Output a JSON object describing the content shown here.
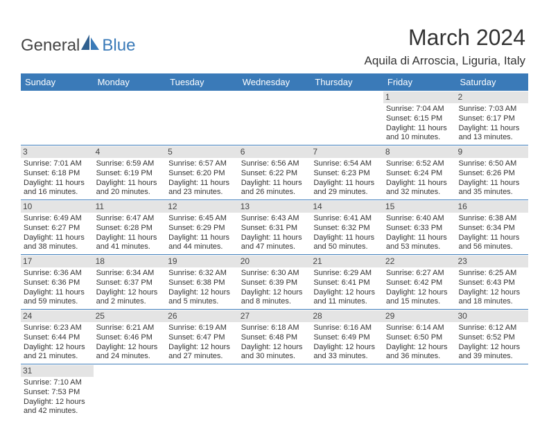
{
  "brand": {
    "part1": "General",
    "part2": "Blue"
  },
  "title": "March 2024",
  "location": "Aquila di Arroscia, Liguria, Italy",
  "colors": {
    "header_bg": "#3a7ab8",
    "header_text": "#ffffff",
    "daynum_bg": "#e4e4e4",
    "border": "#3a7ab8",
    "body_text": "#333333",
    "logo_gray": "#444444",
    "logo_blue": "#3a7ab8"
  },
  "daynames": [
    "Sunday",
    "Monday",
    "Tuesday",
    "Wednesday",
    "Thursday",
    "Friday",
    "Saturday"
  ],
  "weeks": [
    [
      {
        "blank": true
      },
      {
        "blank": true
      },
      {
        "blank": true
      },
      {
        "blank": true
      },
      {
        "blank": true
      },
      {
        "day": "1",
        "sunrise": "Sunrise: 7:04 AM",
        "sunset": "Sunset: 6:15 PM",
        "daylight1": "Daylight: 11 hours",
        "daylight2": "and 10 minutes."
      },
      {
        "day": "2",
        "sunrise": "Sunrise: 7:03 AM",
        "sunset": "Sunset: 6:17 PM",
        "daylight1": "Daylight: 11 hours",
        "daylight2": "and 13 minutes."
      }
    ],
    [
      {
        "day": "3",
        "sunrise": "Sunrise: 7:01 AM",
        "sunset": "Sunset: 6:18 PM",
        "daylight1": "Daylight: 11 hours",
        "daylight2": "and 16 minutes."
      },
      {
        "day": "4",
        "sunrise": "Sunrise: 6:59 AM",
        "sunset": "Sunset: 6:19 PM",
        "daylight1": "Daylight: 11 hours",
        "daylight2": "and 20 minutes."
      },
      {
        "day": "5",
        "sunrise": "Sunrise: 6:57 AM",
        "sunset": "Sunset: 6:20 PM",
        "daylight1": "Daylight: 11 hours",
        "daylight2": "and 23 minutes."
      },
      {
        "day": "6",
        "sunrise": "Sunrise: 6:56 AM",
        "sunset": "Sunset: 6:22 PM",
        "daylight1": "Daylight: 11 hours",
        "daylight2": "and 26 minutes."
      },
      {
        "day": "7",
        "sunrise": "Sunrise: 6:54 AM",
        "sunset": "Sunset: 6:23 PM",
        "daylight1": "Daylight: 11 hours",
        "daylight2": "and 29 minutes."
      },
      {
        "day": "8",
        "sunrise": "Sunrise: 6:52 AM",
        "sunset": "Sunset: 6:24 PM",
        "daylight1": "Daylight: 11 hours",
        "daylight2": "and 32 minutes."
      },
      {
        "day": "9",
        "sunrise": "Sunrise: 6:50 AM",
        "sunset": "Sunset: 6:26 PM",
        "daylight1": "Daylight: 11 hours",
        "daylight2": "and 35 minutes."
      }
    ],
    [
      {
        "day": "10",
        "sunrise": "Sunrise: 6:49 AM",
        "sunset": "Sunset: 6:27 PM",
        "daylight1": "Daylight: 11 hours",
        "daylight2": "and 38 minutes."
      },
      {
        "day": "11",
        "sunrise": "Sunrise: 6:47 AM",
        "sunset": "Sunset: 6:28 PM",
        "daylight1": "Daylight: 11 hours",
        "daylight2": "and 41 minutes."
      },
      {
        "day": "12",
        "sunrise": "Sunrise: 6:45 AM",
        "sunset": "Sunset: 6:29 PM",
        "daylight1": "Daylight: 11 hours",
        "daylight2": "and 44 minutes."
      },
      {
        "day": "13",
        "sunrise": "Sunrise: 6:43 AM",
        "sunset": "Sunset: 6:31 PM",
        "daylight1": "Daylight: 11 hours",
        "daylight2": "and 47 minutes."
      },
      {
        "day": "14",
        "sunrise": "Sunrise: 6:41 AM",
        "sunset": "Sunset: 6:32 PM",
        "daylight1": "Daylight: 11 hours",
        "daylight2": "and 50 minutes."
      },
      {
        "day": "15",
        "sunrise": "Sunrise: 6:40 AM",
        "sunset": "Sunset: 6:33 PM",
        "daylight1": "Daylight: 11 hours",
        "daylight2": "and 53 minutes."
      },
      {
        "day": "16",
        "sunrise": "Sunrise: 6:38 AM",
        "sunset": "Sunset: 6:34 PM",
        "daylight1": "Daylight: 11 hours",
        "daylight2": "and 56 minutes."
      }
    ],
    [
      {
        "day": "17",
        "sunrise": "Sunrise: 6:36 AM",
        "sunset": "Sunset: 6:36 PM",
        "daylight1": "Daylight: 11 hours",
        "daylight2": "and 59 minutes."
      },
      {
        "day": "18",
        "sunrise": "Sunrise: 6:34 AM",
        "sunset": "Sunset: 6:37 PM",
        "daylight1": "Daylight: 12 hours",
        "daylight2": "and 2 minutes."
      },
      {
        "day": "19",
        "sunrise": "Sunrise: 6:32 AM",
        "sunset": "Sunset: 6:38 PM",
        "daylight1": "Daylight: 12 hours",
        "daylight2": "and 5 minutes."
      },
      {
        "day": "20",
        "sunrise": "Sunrise: 6:30 AM",
        "sunset": "Sunset: 6:39 PM",
        "daylight1": "Daylight: 12 hours",
        "daylight2": "and 8 minutes."
      },
      {
        "day": "21",
        "sunrise": "Sunrise: 6:29 AM",
        "sunset": "Sunset: 6:41 PM",
        "daylight1": "Daylight: 12 hours",
        "daylight2": "and 11 minutes."
      },
      {
        "day": "22",
        "sunrise": "Sunrise: 6:27 AM",
        "sunset": "Sunset: 6:42 PM",
        "daylight1": "Daylight: 12 hours",
        "daylight2": "and 15 minutes."
      },
      {
        "day": "23",
        "sunrise": "Sunrise: 6:25 AM",
        "sunset": "Sunset: 6:43 PM",
        "daylight1": "Daylight: 12 hours",
        "daylight2": "and 18 minutes."
      }
    ],
    [
      {
        "day": "24",
        "sunrise": "Sunrise: 6:23 AM",
        "sunset": "Sunset: 6:44 PM",
        "daylight1": "Daylight: 12 hours",
        "daylight2": "and 21 minutes."
      },
      {
        "day": "25",
        "sunrise": "Sunrise: 6:21 AM",
        "sunset": "Sunset: 6:46 PM",
        "daylight1": "Daylight: 12 hours",
        "daylight2": "and 24 minutes."
      },
      {
        "day": "26",
        "sunrise": "Sunrise: 6:19 AM",
        "sunset": "Sunset: 6:47 PM",
        "daylight1": "Daylight: 12 hours",
        "daylight2": "and 27 minutes."
      },
      {
        "day": "27",
        "sunrise": "Sunrise: 6:18 AM",
        "sunset": "Sunset: 6:48 PM",
        "daylight1": "Daylight: 12 hours",
        "daylight2": "and 30 minutes."
      },
      {
        "day": "28",
        "sunrise": "Sunrise: 6:16 AM",
        "sunset": "Sunset: 6:49 PM",
        "daylight1": "Daylight: 12 hours",
        "daylight2": "and 33 minutes."
      },
      {
        "day": "29",
        "sunrise": "Sunrise: 6:14 AM",
        "sunset": "Sunset: 6:50 PM",
        "daylight1": "Daylight: 12 hours",
        "daylight2": "and 36 minutes."
      },
      {
        "day": "30",
        "sunrise": "Sunrise: 6:12 AM",
        "sunset": "Sunset: 6:52 PM",
        "daylight1": "Daylight: 12 hours",
        "daylight2": "and 39 minutes."
      }
    ],
    [
      {
        "day": "31",
        "sunrise": "Sunrise: 7:10 AM",
        "sunset": "Sunset: 7:53 PM",
        "daylight1": "Daylight: 12 hours",
        "daylight2": "and 42 minutes."
      },
      {
        "blank": true
      },
      {
        "blank": true
      },
      {
        "blank": true
      },
      {
        "blank": true
      },
      {
        "blank": true
      },
      {
        "blank": true
      }
    ]
  ]
}
